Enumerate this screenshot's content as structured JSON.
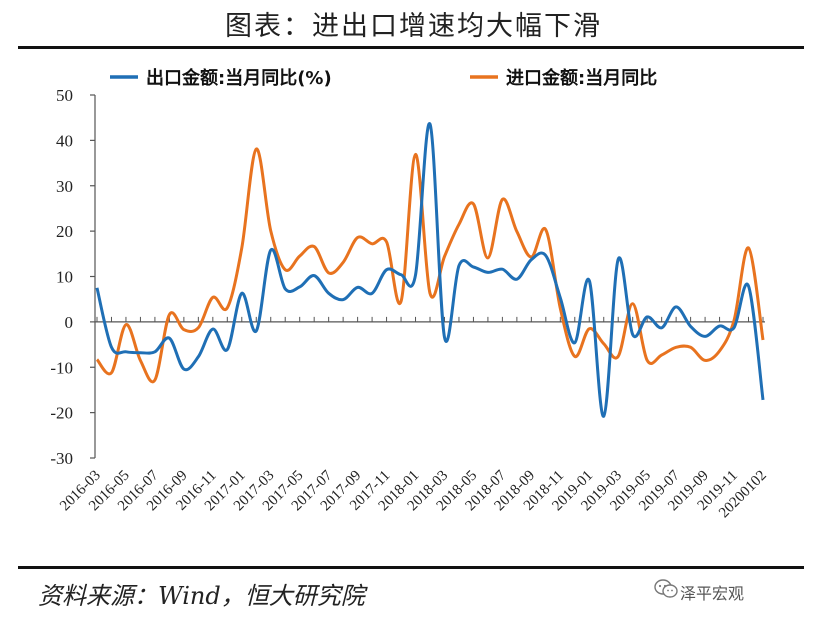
{
  "page": {
    "title": "图表：进出口增速均大幅下滑",
    "source": "资料来源：Wind，恒大研究院",
    "watermark": "泽平宏观"
  },
  "chart_data": {
    "type": "line",
    "title": "图表：进出口增速均大幅下滑",
    "xlabel": "",
    "ylabel": "",
    "ylim": [
      -30,
      50
    ],
    "yticks": [
      50,
      40,
      30,
      20,
      10,
      0,
      -10,
      -20,
      -30
    ],
    "legend_position": "top",
    "x": [
      "2016-03",
      "2016-04",
      "2016-05",
      "2016-06",
      "2016-07",
      "2016-08",
      "2016-09",
      "2016-10",
      "2016-11",
      "2016-12",
      "2017-01",
      "2017-02",
      "2017-03",
      "2017-04",
      "2017-05",
      "2017-06",
      "2017-07",
      "2017-08",
      "2017-09",
      "2017-10",
      "2017-11",
      "2017-12",
      "2018-01",
      "2018-02",
      "2018-03",
      "2018-04",
      "2018-05",
      "2018-06",
      "2018-07",
      "2018-08",
      "2018-09",
      "2018-10",
      "2018-11",
      "2018-12",
      "2019-01",
      "2019-02",
      "2019-03",
      "2019-04",
      "2019-05",
      "2019-06",
      "2019-07",
      "2019-08",
      "2019-09",
      "2019-10",
      "2019-11",
      "2019-12",
      "20200102"
    ],
    "xtick_labels": [
      "2016-03",
      "2016-05",
      "2016-07",
      "2016-09",
      "2016-11",
      "2017-01",
      "2017-03",
      "2017-05",
      "2017-07",
      "2017-09",
      "2017-11",
      "2018-01",
      "2018-03",
      "2018-05",
      "2018-07",
      "2018-09",
      "2018-11",
      "2019-01",
      "2019-03",
      "2019-05",
      "2019-07",
      "2019-09",
      "2019-11",
      "20200102"
    ],
    "series": [
      {
        "name": "出口金额:当月同比(%)",
        "color": "#1f6fb5",
        "values": [
          7.5,
          -5.6,
          -6.6,
          -6.8,
          -6.6,
          -3.6,
          -10.4,
          -7.7,
          -1.6,
          -6.1,
          6.3,
          -2.0,
          15.8,
          7.3,
          7.7,
          10.2,
          6.3,
          4.9,
          7.6,
          6.3,
          11.5,
          10.4,
          10.3,
          43.6,
          -3.4,
          12.4,
          12.1,
          10.9,
          11.6,
          9.4,
          13.7,
          14.6,
          5.3,
          -4.6,
          9.1,
          -20.8,
          13.8,
          -2.8,
          1.1,
          -1.3,
          3.3,
          -1.0,
          -3.2,
          -0.9,
          -1.3,
          7.9,
          -17.2
        ]
      },
      {
        "name": "进口金额:当月同比",
        "color": "#e8731f",
        "values": [
          -8.3,
          -11.2,
          -0.6,
          -8.5,
          -12.8,
          1.6,
          -1.7,
          -1.3,
          5.4,
          3.1,
          16.3,
          38.1,
          20.1,
          11.5,
          14.5,
          16.6,
          10.8,
          13.1,
          18.6,
          17.2,
          17.6,
          4.5,
          36.9,
          6.3,
          14.4,
          21.5,
          26.0,
          14.1,
          27.0,
          19.9,
          14.3,
          20.3,
          3.0,
          -7.6,
          -1.5,
          -4.8,
          -7.6,
          4.0,
          -8.5,
          -7.3,
          -5.6,
          -5.6,
          -8.5,
          -6.4,
          0.3,
          16.3,
          -4.0
        ]
      }
    ]
  }
}
